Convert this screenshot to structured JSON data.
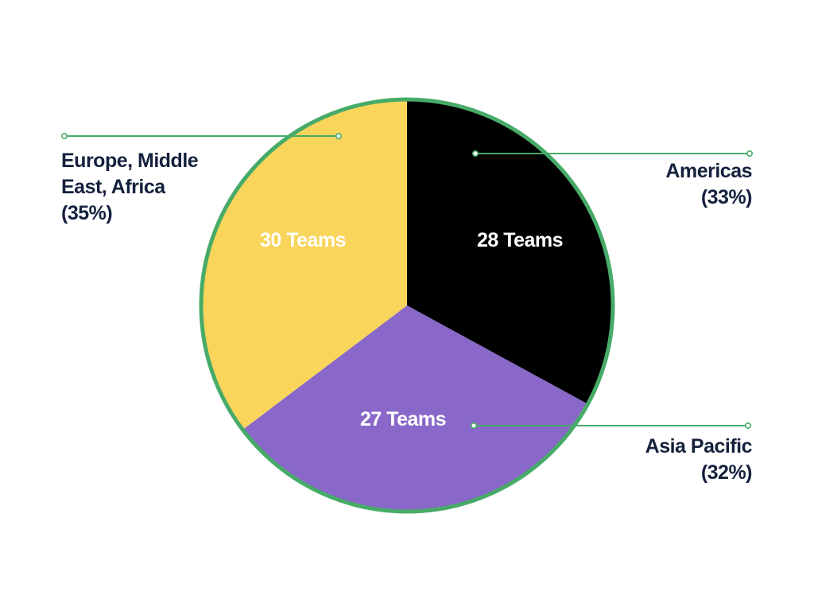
{
  "chart_data": {
    "type": "pie",
    "title": "",
    "series": [
      {
        "values": [
          28,
          27,
          30
        ],
        "slices": [
          {
            "key": "americas",
            "label": "28 Teams",
            "value": 28,
            "region": "Americas",
            "percent": "(33%)",
            "color": "#000000"
          },
          {
            "key": "asia-pacific",
            "label": "27 Teams",
            "value": 27,
            "region": "Asia Pacific",
            "percent": "(32%)",
            "color": "#8968c9"
          },
          {
            "key": "emea",
            "label": "30 Teams",
            "value": 30,
            "region": "Europe, Middle East, Africa",
            "percent": "(35%)",
            "color": "#f9d55c"
          }
        ]
      }
    ],
    "legend": "callouts",
    "outline_color": "#47ab68"
  },
  "callouts": {
    "americas": {
      "line1": "Americas",
      "line2": "(33%)"
    },
    "asia_pacific": {
      "line1": "Asia Pacific",
      "line2": "(32%)"
    },
    "emea": {
      "line1": "Europe, Middle",
      "line2": "East, Africa",
      "line3": "(35%)"
    }
  }
}
